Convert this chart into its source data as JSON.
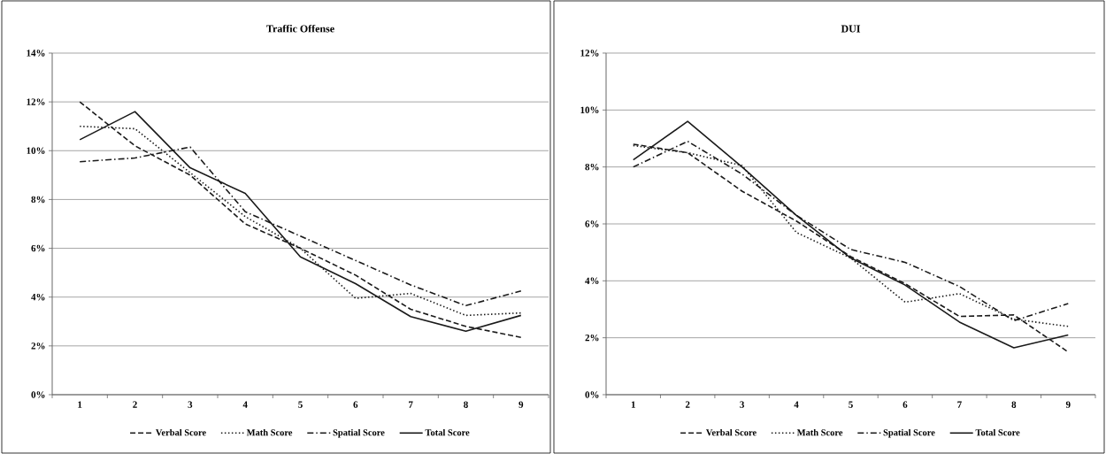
{
  "chart_data": [
    {
      "type": "line",
      "title": "Traffic Offense",
      "categories": [
        "1",
        "2",
        "3",
        "4",
        "5",
        "6",
        "7",
        "8",
        "9"
      ],
      "ylim": [
        0,
        14
      ],
      "yticks": [
        {
          "value": 0,
          "label": "0%"
        },
        {
          "value": 2,
          "label": "2%"
        },
        {
          "value": 4,
          "label": "4%"
        },
        {
          "value": 6,
          "label": "6%"
        },
        {
          "value": 8,
          "label": "8%"
        },
        {
          "value": 10,
          "label": "10%"
        },
        {
          "value": 12,
          "label": "12%"
        },
        {
          "value": 14,
          "label": "14%"
        }
      ],
      "grid": "y",
      "legend": "bottom",
      "marker": "none",
      "series": [
        {
          "name": "Verbal Score",
          "color": "#1a1a1a",
          "line_style": "dashed",
          "values": [
            12.0,
            10.2,
            9.0,
            7.0,
            6.0,
            4.9,
            3.5,
            2.8,
            2.35
          ]
        },
        {
          "name": "Math Score",
          "color": "#1a1a1a",
          "line_style": "dotted",
          "values": [
            11.0,
            10.9,
            9.1,
            7.3,
            6.0,
            3.95,
            4.15,
            3.25,
            3.35
          ]
        },
        {
          "name": "Spatial Score",
          "color": "#1a1a1a",
          "line_style": "dashdot",
          "values": [
            9.55,
            9.7,
            10.15,
            7.5,
            6.5,
            5.5,
            4.5,
            3.65,
            4.25
          ]
        },
        {
          "name": "Total Score",
          "color": "#1a1a1a",
          "line_style": "solid",
          "values": [
            10.45,
            11.6,
            9.3,
            8.25,
            5.65,
            4.55,
            3.2,
            2.6,
            3.25
          ]
        }
      ]
    },
    {
      "type": "line",
      "title": "DUI",
      "categories": [
        "1",
        "2",
        "3",
        "4",
        "5",
        "6",
        "7",
        "8",
        "9"
      ],
      "ylim": [
        0,
        12
      ],
      "yticks": [
        {
          "value": 0,
          "label": "0%"
        },
        {
          "value": 2,
          "label": "2%"
        },
        {
          "value": 4,
          "label": "4%"
        },
        {
          "value": 6,
          "label": "6%"
        },
        {
          "value": 8,
          "label": "8%"
        },
        {
          "value": 10,
          "label": "10%"
        },
        {
          "value": 12,
          "label": "12%"
        }
      ],
      "grid": "y",
      "legend": "bottom",
      "marker": "none",
      "series": [
        {
          "name": "Verbal Score",
          "color": "#1a1a1a",
          "line_style": "dashed",
          "values": [
            8.8,
            8.5,
            7.15,
            6.1,
            4.85,
            3.9,
            2.75,
            2.8,
            1.5
          ]
        },
        {
          "name": "Math Score",
          "color": "#1a1a1a",
          "line_style": "dotted",
          "values": [
            8.75,
            8.5,
            8.05,
            5.7,
            4.8,
            3.25,
            3.55,
            2.65,
            2.4
          ]
        },
        {
          "name": "Spatial Score",
          "color": "#1a1a1a",
          "line_style": "dashdot",
          "values": [
            8.0,
            8.9,
            7.75,
            6.3,
            5.1,
            4.65,
            3.8,
            2.6,
            3.2
          ]
        },
        {
          "name": "Total Score",
          "color": "#1a1a1a",
          "line_style": "solid",
          "values": [
            8.25,
            9.6,
            8.0,
            6.3,
            4.8,
            3.85,
            2.55,
            1.65,
            2.1
          ]
        }
      ]
    }
  ]
}
